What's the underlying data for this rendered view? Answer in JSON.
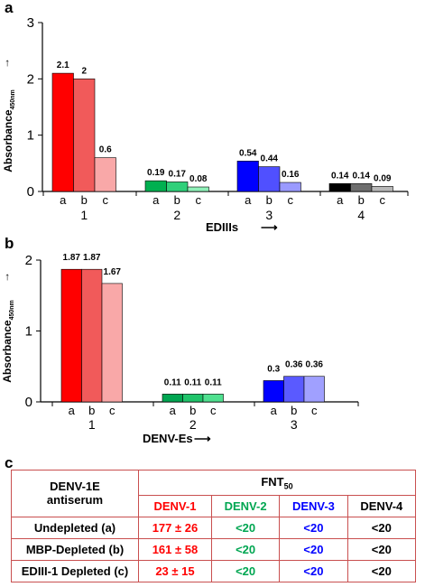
{
  "panels": {
    "a": "a",
    "b": "b",
    "c": "c"
  },
  "chart_data": [
    {
      "type": "bar",
      "ylabel": "Absorbance",
      "ylabel_sub": "450nm",
      "ylabel_arrow": "→",
      "xlabel": "EDIIIs",
      "xlabel_arrow": "⟶",
      "ylim": [
        0,
        3
      ],
      "yticks": [
        "0",
        "1",
        "2",
        "3"
      ],
      "groups": [
        {
          "label": "1",
          "bars": [
            {
              "label": "a",
              "value": 2.1,
              "display": "2.1",
              "color": "#ff0000"
            },
            {
              "label": "b",
              "value": 2.0,
              "display": "2",
              "color": "#f15a5a"
            },
            {
              "label": "c",
              "value": 0.6,
              "display": "0.6",
              "color": "#f9a8a8"
            }
          ]
        },
        {
          "label": "2",
          "bars": [
            {
              "label": "a",
              "value": 0.19,
              "display": "0.19",
              "color": "#00b050"
            },
            {
              "label": "b",
              "value": 0.17,
              "display": "0.17",
              "color": "#2fd07a"
            },
            {
              "label": "c",
              "value": 0.08,
              "display": "0.08",
              "color": "#8ff0b8"
            }
          ]
        },
        {
          "label": "3",
          "bars": [
            {
              "label": "a",
              "value": 0.54,
              "display": "0.54",
              "color": "#0000ff"
            },
            {
              "label": "b",
              "value": 0.44,
              "display": "0.44",
              "color": "#5050ff"
            },
            {
              "label": "c",
              "value": 0.16,
              "display": "0.16",
              "color": "#9a9aff"
            }
          ]
        },
        {
          "label": "4",
          "bars": [
            {
              "label": "a",
              "value": 0.14,
              "display": "0.14",
              "color": "#000000"
            },
            {
              "label": "b",
              "value": 0.14,
              "display": "0.14",
              "color": "#6e6e6e"
            },
            {
              "label": "c",
              "value": 0.09,
              "display": "0.09",
              "color": "#b8b8b8"
            }
          ]
        }
      ]
    },
    {
      "type": "bar",
      "ylabel": "Absorbance",
      "ylabel_sub": "450nm",
      "ylabel_arrow": "→",
      "xlabel": "DENV-Es",
      "xlabel_arrow": "⟶",
      "ylim": [
        0,
        2
      ],
      "yticks": [
        "0",
        "1",
        "2"
      ],
      "groups": [
        {
          "label": "1",
          "bars": [
            {
              "label": "a",
              "value": 1.87,
              "display": "1.87",
              "color": "#ff0000"
            },
            {
              "label": "b",
              "value": 1.87,
              "display": "1.87",
              "color": "#f15a5a"
            },
            {
              "label": "c",
              "value": 1.67,
              "display": "1.67",
              "color": "#f9a8a8"
            }
          ]
        },
        {
          "label": "2",
          "bars": [
            {
              "label": "a",
              "value": 0.11,
              "display": "0.11",
              "color": "#00a651"
            },
            {
              "label": "b",
              "value": 0.11,
              "display": "0.11",
              "color": "#1fc46a"
            },
            {
              "label": "c",
              "value": 0.11,
              "display": "0.11",
              "color": "#4fe08f"
            }
          ]
        },
        {
          "label": "3",
          "bars": [
            {
              "label": "a",
              "value": 0.3,
              "display": "0.3",
              "color": "#0000ff"
            },
            {
              "label": "b",
              "value": 0.36,
              "display": "0.36",
              "color": "#5a5aff"
            },
            {
              "label": "c",
              "value": 0.36,
              "display": "0.36",
              "color": "#a0a0ff"
            }
          ]
        }
      ]
    }
  ],
  "table": {
    "corner_line1": "DENV-1E",
    "corner_line2": "antiserum",
    "fnt_main": "FNT",
    "fnt_sub": "50",
    "columns": [
      {
        "label": "DENV-1",
        "color": "c-red"
      },
      {
        "label": "DENV-2",
        "color": "c-green"
      },
      {
        "label": "DENV-3",
        "color": "c-blue"
      },
      {
        "label": "DENV-4",
        "color": "c-black"
      }
    ],
    "rows": [
      {
        "label": "Undepleted (a)",
        "cells": [
          "177 ± 26",
          "<20",
          "<20",
          "<20"
        ]
      },
      {
        "label": "MBP-Depleted (b)",
        "cells": [
          "161 ± 58",
          "<20",
          "<20",
          "<20"
        ]
      },
      {
        "label": "EDIII-1 Depleted (c)",
        "cells": [
          "23 ± 15",
          "<20",
          "<20",
          "<20"
        ]
      }
    ]
  }
}
